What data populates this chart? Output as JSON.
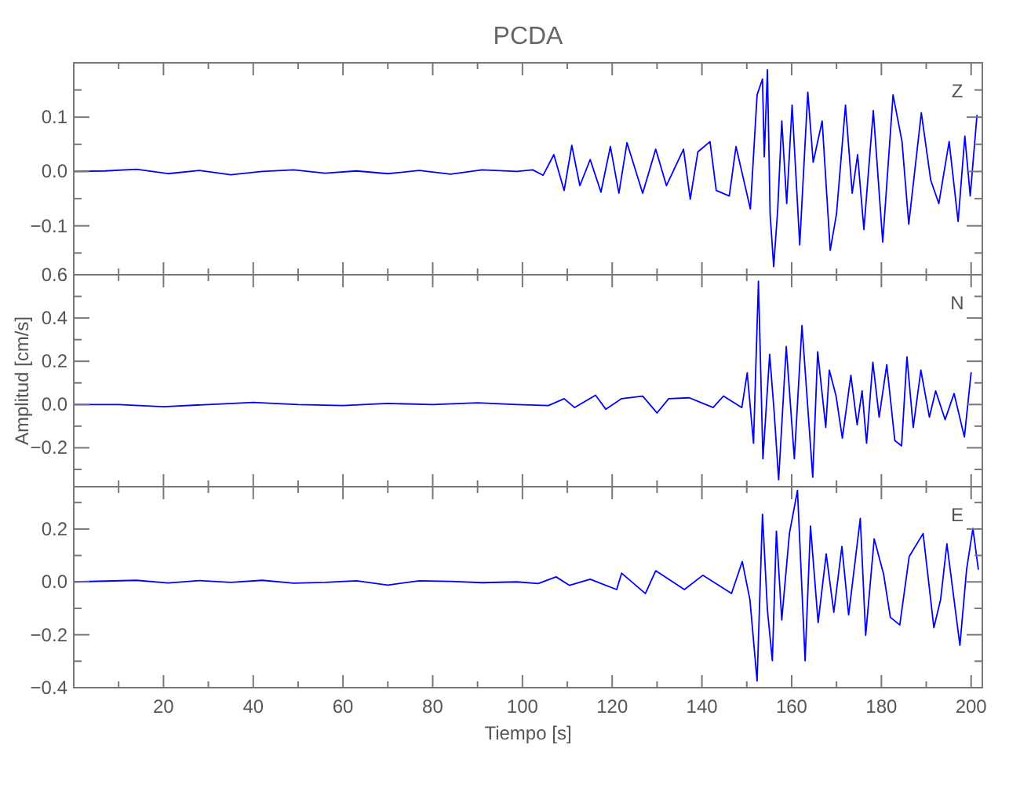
{
  "chart_data": [
    {
      "type": "line",
      "title": "PCDA",
      "annotations": [
        "Z"
      ],
      "tick_labels": "y",
      "xlim": [
        0,
        202.5
      ],
      "ylim": [
        -0.19,
        0.2
      ],
      "xticks": [
        {
          "value": 10,
          "label": null
        },
        20,
        {
          "value": 30,
          "label": null
        },
        40,
        {
          "value": 50,
          "label": null
        },
        60,
        {
          "value": 70,
          "label": null
        },
        80,
        {
          "value": 90,
          "label": null
        },
        100,
        {
          "value": 110,
          "label": null
        },
        120,
        {
          "value": 130,
          "label": null
        },
        140,
        {
          "value": 150,
          "label": null
        },
        160,
        {
          "value": 170,
          "label": null
        },
        180,
        {
          "value": 190,
          "label": null
        },
        200
      ],
      "yticks": [
        {
          "value": 0.15,
          "label": null
        },
        {
          "value": 0.1,
          "label": "0.1"
        },
        {
          "value": 0.05,
          "label": null
        },
        {
          "value": 0,
          "label": "0.0"
        },
        {
          "value": -0.05,
          "label": null
        },
        {
          "value": -0.1,
          "label": "−0.1"
        },
        {
          "value": -0.15,
          "label": null
        }
      ],
      "series": [
        {
          "color": "#0000ff",
          "x": [
            0,
            7,
            14,
            21,
            28,
            35,
            42,
            49,
            56,
            63,
            70,
            77,
            84,
            91,
            98.8,
            102.3,
            104.6,
            107,
            109.3,
            111,
            112.8,
            115.1,
            117.5,
            119.6,
            121.5,
            123.3,
            126.8,
            129.7,
            132.1,
            135.9,
            137.4,
            139.1,
            141.8,
            143.2,
            146.1,
            147.6,
            150.8,
            152.3,
            153.5,
            153.9,
            154.6,
            155.2,
            156,
            156.9,
            157.8,
            158.9,
            160.1,
            161.8,
            163.6,
            164.8,
            166.8,
            168.6,
            170,
            172,
            173.5,
            174.7,
            176.1,
            178.2,
            180.3,
            182.6,
            184.6,
            186.1,
            188.9,
            191,
            192.8,
            195.1,
            197.1,
            198.6,
            199.8,
            201.3
          ],
          "values": [
            0,
            0.001,
            0.004,
            -0.004,
            0.002,
            -0.006,
            0,
            0.003,
            -0.003,
            0.001,
            -0.004,
            0.002,
            -0.005,
            0.003,
            0,
            0.003,
            -0.007,
            0.031,
            -0.035,
            0.048,
            -0.026,
            0.022,
            -0.038,
            0.046,
            -0.04,
            0.053,
            -0.04,
            0.041,
            -0.026,
            0.041,
            -0.051,
            0.036,
            0.055,
            -0.035,
            -0.045,
            0.046,
            -0.069,
            0.141,
            0.17,
            0.027,
            0.187,
            -0.078,
            -0.175,
            -0.069,
            0.093,
            -0.059,
            0.122,
            -0.135,
            0.146,
            0.017,
            0.093,
            -0.145,
            -0.078,
            0.122,
            -0.04,
            0.031,
            -0.107,
            0.112,
            -0.13,
            0.141,
            0.055,
            -0.097,
            0.108,
            -0.016,
            -0.059,
            0.055,
            -0.092,
            0.065,
            -0.045,
            0.103
          ]
        }
      ]
    },
    {
      "type": "line",
      "ylabel": "Amplitud [cm/s]",
      "annotations": [
        "N"
      ],
      "tick_labels": "y",
      "xlim": [
        0,
        202.5
      ],
      "ylim": [
        -0.38,
        0.6
      ],
      "xticks": [
        {
          "value": 10,
          "label": null
        },
        20,
        {
          "value": 30,
          "label": null
        },
        40,
        {
          "value": 50,
          "label": null
        },
        60,
        {
          "value": 70,
          "label": null
        },
        80,
        {
          "value": 90,
          "label": null
        },
        100,
        {
          "value": 110,
          "label": null
        },
        120,
        {
          "value": 130,
          "label": null
        },
        140,
        {
          "value": 150,
          "label": null
        },
        160,
        {
          "value": 170,
          "label": null
        },
        180,
        {
          "value": 190,
          "label": null
        },
        200
      ],
      "yticks": [
        {
          "value": 0.6,
          "label": "0.6"
        },
        {
          "value": 0.5,
          "label": null
        },
        {
          "value": 0.4,
          "label": "0.4"
        },
        {
          "value": 0.3,
          "label": null
        },
        {
          "value": 0.2,
          "label": "0.2"
        },
        {
          "value": 0.1,
          "label": null
        },
        {
          "value": 0,
          "label": "0.0"
        },
        {
          "value": -0.1,
          "label": null
        },
        {
          "value": -0.2,
          "label": "−0.2"
        },
        {
          "value": -0.3,
          "label": null
        }
      ],
      "series": [
        {
          "color": "#0000ff",
          "x": [
            0,
            10,
            20,
            30,
            40,
            50,
            60,
            70,
            80,
            90,
            98.8,
            105.8,
            109.3,
            111.6,
            116.3,
            118.6,
            122.1,
            126.8,
            130,
            132.6,
            137.2,
            142.5,
            144.8,
            148.9,
            150.1,
            151.5,
            152.6,
            153.6,
            155.1,
            156.1,
            157.1,
            158.8,
            160.6,
            162.3,
            164.7,
            165.8,
            167.6,
            168.4,
            169.9,
            171.3,
            173.2,
            174.6,
            175.7,
            176.7,
            178.1,
            179.5,
            181.2,
            183,
            184.5,
            185.7,
            187.1,
            188.8,
            190.7,
            192.1,
            194.2,
            196.2,
            198.5,
            200
          ],
          "values": [
            0,
            0,
            -0.01,
            0,
            0.01,
            0,
            -0.005,
            0.005,
            0,
            0.008,
            0,
            -0.005,
            0.027,
            -0.014,
            0.043,
            -0.022,
            0.027,
            0.039,
            -0.039,
            0.027,
            0.031,
            -0.014,
            0.039,
            -0.014,
            0.147,
            -0.179,
            0.57,
            -0.251,
            0.232,
            -0.034,
            -0.348,
            0.268,
            -0.251,
            0.365,
            -0.336,
            0.244,
            -0.106,
            0.159,
            0.039,
            -0.155,
            0.135,
            -0.094,
            0.063,
            -0.179,
            0.196,
            -0.058,
            0.184,
            -0.167,
            -0.191,
            0.22,
            -0.106,
            0.159,
            -0.058,
            0.063,
            -0.07,
            0.051,
            -0.15,
            0.147
          ]
        }
      ]
    },
    {
      "type": "line",
      "xlabel": "Tiempo [s]",
      "annotations": [
        "E"
      ],
      "xlim": [
        0,
        202.5
      ],
      "ylim": [
        -0.4,
        0.36
      ],
      "xticks": [
        {
          "value": 10,
          "label": null
        },
        20,
        {
          "value": 30,
          "label": null
        },
        40,
        {
          "value": 50,
          "label": null
        },
        60,
        {
          "value": 70,
          "label": null
        },
        80,
        {
          "value": 90,
          "label": null
        },
        100,
        {
          "value": 110,
          "label": null
        },
        120,
        {
          "value": 130,
          "label": null
        },
        140,
        {
          "value": 150,
          "label": null
        },
        160,
        {
          "value": 170,
          "label": null
        },
        180,
        {
          "value": 190,
          "label": null
        },
        200
      ],
      "yticks": [
        {
          "value": 0.3,
          "label": null
        },
        {
          "value": 0.2,
          "label": "0.2"
        },
        {
          "value": 0.1,
          "label": null
        },
        {
          "value": 0,
          "label": "0.0"
        },
        {
          "value": -0.1,
          "label": null
        },
        {
          "value": -0.2,
          "label": "−0.2"
        },
        {
          "value": -0.3,
          "label": null
        },
        {
          "value": -0.4,
          "label": "−0.4"
        }
      ],
      "series": [
        {
          "color": "#0000ff",
          "x": [
            0,
            7,
            14,
            21,
            28,
            35,
            42,
            49,
            56,
            63,
            70,
            77,
            84,
            91,
            98.8,
            103.5,
            107.5,
            110.5,
            115.1,
            121,
            122.1,
            127.4,
            129.7,
            136.1,
            140.2,
            146.6,
            149,
            150.7,
            152.3,
            153.5,
            154.6,
            155.7,
            156.6,
            157.8,
            159.5,
            161.3,
            163,
            164.2,
            165.9,
            167.7,
            169.4,
            171.2,
            172.7,
            175.3,
            176.5,
            178.4,
            180.5,
            182,
            184.1,
            186.2,
            189.3,
            191.7,
            193.2,
            194.6,
            197.5,
            199,
            200.4,
            201.6
          ],
          "values": [
            0,
            0.003,
            0.006,
            -0.004,
            0.005,
            -0.002,
            0.006,
            -0.005,
            -0.002,
            0.004,
            -0.012,
            0.004,
            0.002,
            -0.003,
            0,
            -0.006,
            0.019,
            -0.013,
            0.01,
            -0.029,
            0.033,
            -0.044,
            0.042,
            -0.029,
            0.025,
            -0.044,
            0.077,
            -0.067,
            -0.375,
            0.256,
            -0.106,
            -0.298,
            0.192,
            -0.144,
            0.183,
            0.346,
            -0.298,
            0.211,
            -0.154,
            0.106,
            -0.115,
            0.134,
            -0.125,
            0.24,
            -0.202,
            0.163,
            0.029,
            -0.134,
            -0.163,
            0.096,
            0.183,
            -0.173,
            -0.067,
            0.144,
            -0.24,
            0.048,
            0.202,
            0.048
          ]
        }
      ]
    }
  ]
}
